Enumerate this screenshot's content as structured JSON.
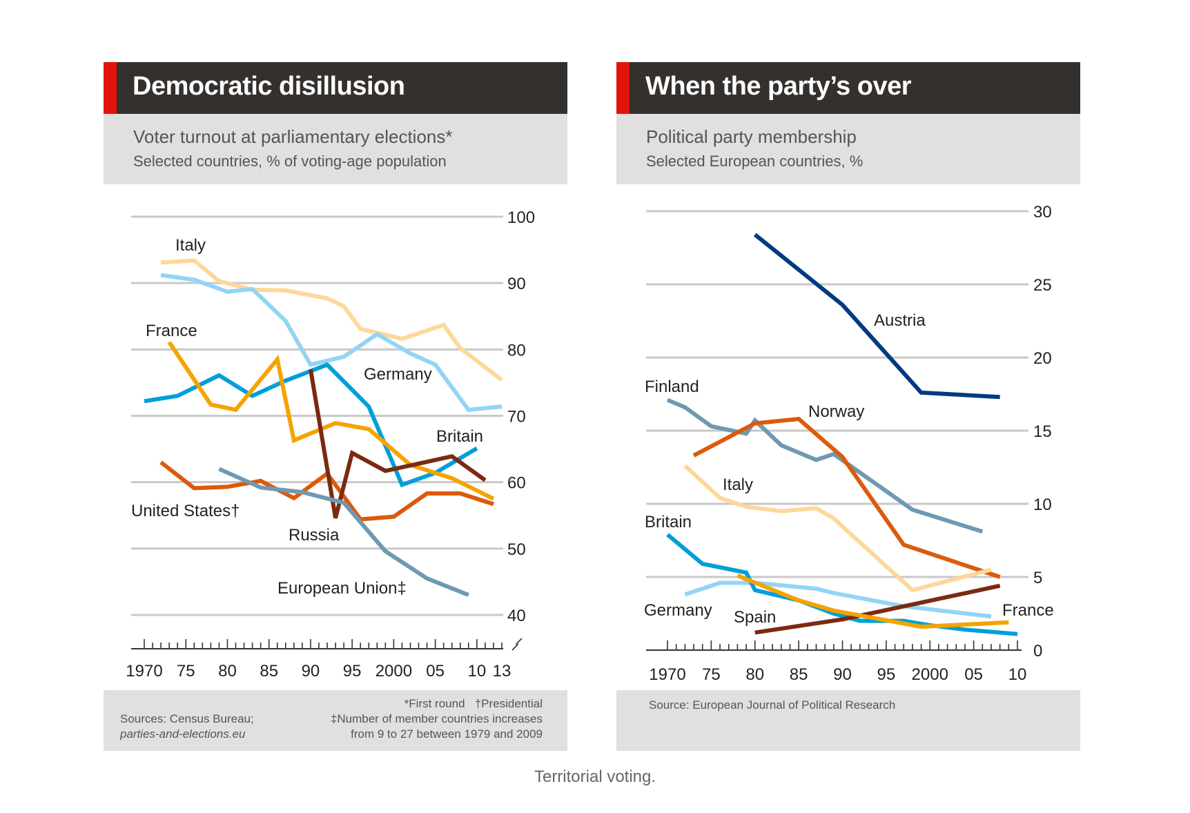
{
  "caption": "Territorial voting.",
  "chart_data": [
    {
      "type": "line",
      "title": "Democratic disillusion",
      "subtitle": "Voter turnout at parliamentary elections*",
      "subtitle2": "Selected countries, % of voting-age population",
      "ylim": [
        40,
        100
      ],
      "yticks": [
        40,
        50,
        60,
        70,
        80,
        90,
        100
      ],
      "xlim": [
        1970,
        2013
      ],
      "xtick_labels": [
        {
          "x": 1970,
          "label": "1970"
        },
        {
          "x": 1975,
          "label": "75"
        },
        {
          "x": 1980,
          "label": "80"
        },
        {
          "x": 1985,
          "label": "85"
        },
        {
          "x": 1990,
          "label": "90"
        },
        {
          "x": 1995,
          "label": "95"
        },
        {
          "x": 2000,
          "label": "2000"
        },
        {
          "x": 2005,
          "label": "05"
        },
        {
          "x": 2010,
          "label": "10"
        },
        {
          "x": 2013,
          "label": "13"
        }
      ],
      "axis_break": true,
      "grid": true,
      "series": [
        {
          "name": "Italy",
          "label": "Italy",
          "color": "#fdd89a",
          "x": [
            1972,
            1976,
            1979,
            1983,
            1987,
            1992,
            1994,
            1996,
            2001,
            2006,
            2008,
            2013
          ],
          "y": [
            93.1,
            93.4,
            90.3,
            89,
            88.9,
            87.7,
            86.5,
            83.1,
            81.6,
            83.7,
            80.2,
            75.4
          ]
        },
        {
          "name": "Germany",
          "label": "Germany",
          "color": "#94d4f5",
          "x": [
            1972,
            1976,
            1980,
            1983,
            1987,
            1990,
            1994,
            1998,
            2002,
            2005,
            2009,
            2013
          ],
          "y": [
            91.2,
            90.5,
            88.7,
            89.1,
            84.3,
            77.7,
            78.9,
            82.3,
            79.4,
            77.7,
            70.9,
            71.4
          ]
        },
        {
          "name": "Britain",
          "label": "Britain",
          "color": "#009fd9",
          "x": [
            1970,
            1974,
            1979,
            1983,
            1987,
            1992,
            1997,
            2001,
            2005,
            2010
          ],
          "y": [
            72.2,
            73,
            76.1,
            73,
            75.3,
            77.7,
            71.4,
            59.6,
            61.4,
            65.1
          ]
        },
        {
          "name": "France",
          "label": "France",
          "color": "#f5a300",
          "x": [
            1973,
            1978,
            1981,
            1986,
            1988,
            1993,
            1997,
            2002,
            2007,
            2012
          ],
          "y": [
            81.1,
            71.7,
            70.9,
            78.5,
            66.3,
            68.9,
            68,
            62.6,
            60.6,
            57.5
          ]
        },
        {
          "name": "United States",
          "label": "United States†",
          "color": "#dc5a0c",
          "x": [
            1972,
            1976,
            1980,
            1984,
            1988,
            1992,
            1996,
            2000,
            2004,
            2008,
            2012
          ],
          "y": [
            63,
            59.1,
            59.3,
            60.2,
            57.6,
            61.3,
            54.4,
            54.8,
            58.3,
            58.3,
            56.7
          ]
        },
        {
          "name": "Russia",
          "label": "Russia",
          "color": "#7a2a12",
          "x": [
            1990,
            1993,
            1995,
            1999,
            2007,
            2011
          ],
          "y": [
            77,
            54.6,
            64.4,
            61.7,
            63.9,
            60.3
          ]
        },
        {
          "name": "European Union",
          "label": "European Union‡",
          "color": "#6f99b2",
          "x": [
            1979,
            1984,
            1989,
            1994,
            1999,
            2004,
            2009
          ],
          "y": [
            62,
            59.2,
            58.5,
            56.9,
            49.6,
            45.5,
            43
          ]
        }
      ],
      "footer": {
        "sources_line1": "Sources: Census Bureau;",
        "sources_line2": "parties-and-elections.eu",
        "note1": "*First round   †Presidential",
        "note2": "‡Number of member countries increases",
        "note3": "from 9 to 27 between 1979 and 2009"
      }
    },
    {
      "type": "line",
      "title": "When the party’s over",
      "subtitle": "Political party membership",
      "subtitle2": "Selected European countries, %",
      "ylim": [
        0,
        30
      ],
      "yticks": [
        0,
        5,
        10,
        15,
        20,
        25,
        30
      ],
      "xlim": [
        1970,
        2010
      ],
      "xtick_labels": [
        {
          "x": 1970,
          "label": "1970"
        },
        {
          "x": 1975,
          "label": "75"
        },
        {
          "x": 1980,
          "label": "80"
        },
        {
          "x": 1985,
          "label": "85"
        },
        {
          "x": 1990,
          "label": "90"
        },
        {
          "x": 1995,
          "label": "95"
        },
        {
          "x": 2000,
          "label": "2000"
        },
        {
          "x": 2005,
          "label": "05"
        },
        {
          "x": 2010,
          "label": "10"
        }
      ],
      "grid": true,
      "series": [
        {
          "name": "Austria",
          "label": "Austria",
          "color": "#003a80",
          "x": [
            1980,
            1990,
            1999,
            2008
          ],
          "y": [
            28.4,
            23.6,
            17.6,
            17.3
          ]
        },
        {
          "name": "Finland",
          "label": "Finland",
          "color": "#6f99b2",
          "x": [
            1970,
            1972,
            1975,
            1979,
            1980,
            1983,
            1987,
            1989,
            1998,
            2006
          ],
          "y": [
            17.1,
            16.6,
            15.3,
            14.8,
            15.7,
            14,
            13,
            13.4,
            9.6,
            8.1
          ]
        },
        {
          "name": "Norway",
          "label": "Norway",
          "color": "#dc5a0c",
          "x": [
            1973,
            1980,
            1985,
            1990,
            1997,
            2008
          ],
          "y": [
            13.3,
            15.5,
            15.8,
            13.2,
            7.2,
            5
          ]
        },
        {
          "name": "Italy",
          "label": "Italy",
          "color": "#fdd89a",
          "x": [
            1972,
            1976,
            1979,
            1983,
            1987,
            1989,
            1998,
            2007
          ],
          "y": [
            12.6,
            10.4,
            9.8,
            9.5,
            9.7,
            9,
            4.1,
            5.5
          ]
        },
        {
          "name": "Germany",
          "label": "Germany",
          "color": "#94d4f5",
          "x": [
            1972,
            1976,
            1980,
            1987,
            1989,
            1997,
            2007
          ],
          "y": [
            3.8,
            4.6,
            4.6,
            4.2,
            3.9,
            3,
            2.3
          ]
        },
        {
          "name": "Britain",
          "label": "Britain",
          "color": "#009fd9",
          "x": [
            1970,
            1974,
            1979,
            1980,
            1985,
            1989,
            1992,
            1997,
            2000,
            2004,
            2010
          ],
          "y": [
            7.9,
            5.9,
            5.3,
            4.1,
            3.4,
            2.5,
            2,
            2,
            1.7,
            1.4,
            1.1
          ]
        },
        {
          "name": "Spain",
          "label": "Spain",
          "color": "#7a2a12",
          "x": [
            1980,
            1990,
            2008
          ],
          "y": [
            1.2,
            2.1,
            4.4
          ]
        },
        {
          "name": "France",
          "label": "France",
          "color": "#f5a300",
          "x": [
            1978,
            1985,
            1989,
            1999,
            2009
          ],
          "y": [
            5.1,
            3.4,
            2.7,
            1.6,
            1.9
          ]
        }
      ],
      "footer": {
        "source": "Source: European Journal of Political Research"
      }
    }
  ]
}
